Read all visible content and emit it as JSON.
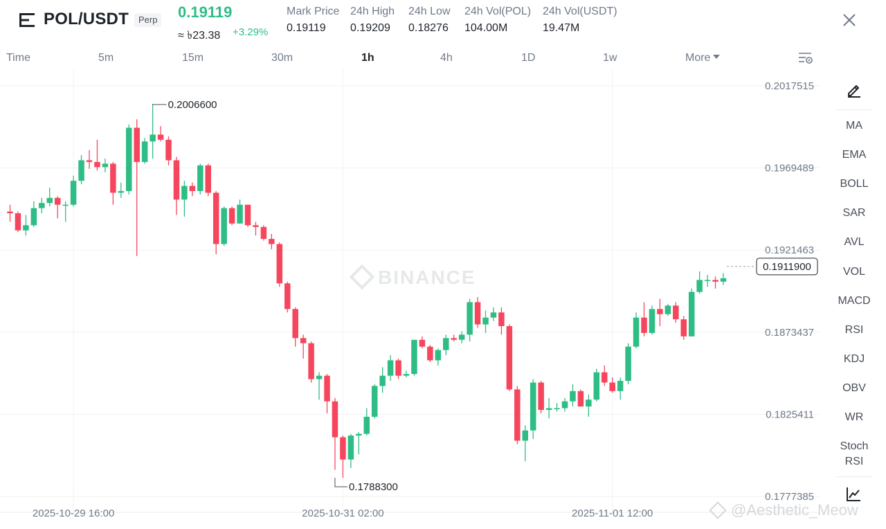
{
  "header": {
    "pair": "POL/USDT",
    "badge": "Perp",
    "last_price": "0.19119",
    "approx_fiat": "≈ ৳23.38",
    "change_pct": "+3.29%",
    "stats": [
      {
        "label": "Mark Price",
        "value": "0.19119"
      },
      {
        "label": "24h High",
        "value": "0.19209"
      },
      {
        "label": "24h Low",
        "value": "0.18276"
      },
      {
        "label": "24h Vol(POL)",
        "value": "104.00M"
      },
      {
        "label": "24h Vol(USDT)",
        "value": "19.47M"
      }
    ]
  },
  "intervals": {
    "items": [
      "Time",
      "5m",
      "15m",
      "30m",
      "1h",
      "4h",
      "1D",
      "1w",
      "More"
    ],
    "active": "1h"
  },
  "indicators": [
    "MA",
    "EMA",
    "BOLL",
    "SAR",
    "AVL",
    "VOL",
    "MACD",
    "RSI",
    "KDJ",
    "OBV",
    "WR",
    "Stoch",
    "RSI"
  ],
  "icons": {
    "menu": "menu-icon",
    "close": "close-icon",
    "settings": "chart-settings-icon",
    "pencil": "drawing-pencil-icon",
    "chart": "chart-line-icon"
  },
  "colors": {
    "up": "#2ebd85",
    "down": "#f6465d",
    "grid": "#f0f1f2",
    "text_secondary": "#707a8a"
  },
  "footer_watermark": "@Aesthetic_Meow",
  "chart_data": {
    "type": "candlestick",
    "watermark": "BINANCE",
    "y_ticks": [
      "0.2017515",
      "0.1969489",
      "0.1921463",
      "0.1873437",
      "0.1825411",
      "0.1777385"
    ],
    "y_tick_values": [
      0.2017515,
      0.1969489,
      0.1921463,
      0.1873437,
      0.1825411,
      0.1777385
    ],
    "x_ticks": [
      "2025-10-29 16:00",
      "2025-10-31 02:00",
      "2025-11-01 12:00"
    ],
    "x_tick_index": [
      8,
      42,
      76
    ],
    "current_price": "0.1911900",
    "current_price_value": 0.19119,
    "high_marker": {
      "label": "0.2006600",
      "value": 0.20066,
      "index": 18
    },
    "low_marker": {
      "label": "0.1788300",
      "value": 0.17883,
      "index": 41
    },
    "candles": [
      {
        "o": 0.1944,
        "h": 0.1948,
        "l": 0.1938,
        "c": 0.1943
      },
      {
        "o": 0.1943,
        "h": 0.1944,
        "l": 0.1932,
        "c": 0.1933
      },
      {
        "o": 0.1933,
        "h": 0.1942,
        "l": 0.193,
        "c": 0.1936
      },
      {
        "o": 0.1936,
        "h": 0.195,
        "l": 0.1935,
        "c": 0.1946
      },
      {
        "o": 0.1946,
        "h": 0.1952,
        "l": 0.1943,
        "c": 0.1949
      },
      {
        "o": 0.1949,
        "h": 0.1958,
        "l": 0.1947,
        "c": 0.1952
      },
      {
        "o": 0.1952,
        "h": 0.1953,
        "l": 0.194,
        "c": 0.1948
      },
      {
        "o": 0.1948,
        "h": 0.195,
        "l": 0.1938,
        "c": 0.1948
      },
      {
        "o": 0.1948,
        "h": 0.1965,
        "l": 0.1947,
        "c": 0.1962
      },
      {
        "o": 0.1962,
        "h": 0.1977,
        "l": 0.196,
        "c": 0.1974
      },
      {
        "o": 0.1974,
        "h": 0.198,
        "l": 0.1969,
        "c": 0.1973
      },
      {
        "o": 0.1973,
        "h": 0.1986,
        "l": 0.1968,
        "c": 0.197
      },
      {
        "o": 0.197,
        "h": 0.1975,
        "l": 0.1967,
        "c": 0.1972
      },
      {
        "o": 0.1972,
        "h": 0.1973,
        "l": 0.1948,
        "c": 0.1955
      },
      {
        "o": 0.1955,
        "h": 0.1961,
        "l": 0.1952,
        "c": 0.1956
      },
      {
        "o": 0.1956,
        "h": 0.1995,
        "l": 0.1954,
        "c": 0.1993
      },
      {
        "o": 0.1993,
        "h": 0.1998,
        "l": 0.1918,
        "c": 0.1973
      },
      {
        "o": 0.1973,
        "h": 0.1987,
        "l": 0.1972,
        "c": 0.1985
      },
      {
        "o": 0.1985,
        "h": 0.20066,
        "l": 0.1975,
        "c": 0.1989
      },
      {
        "o": 0.1989,
        "h": 0.1994,
        "l": 0.1985,
        "c": 0.1986
      },
      {
        "o": 0.1986,
        "h": 0.1988,
        "l": 0.1971,
        "c": 0.1974
      },
      {
        "o": 0.1974,
        "h": 0.1976,
        "l": 0.1942,
        "c": 0.1951
      },
      {
        "o": 0.1951,
        "h": 0.1962,
        "l": 0.1941,
        "c": 0.1959
      },
      {
        "o": 0.1959,
        "h": 0.1961,
        "l": 0.1953,
        "c": 0.1956
      },
      {
        "o": 0.1956,
        "h": 0.1972,
        "l": 0.1954,
        "c": 0.1971
      },
      {
        "o": 0.1971,
        "h": 0.1972,
        "l": 0.1953,
        "c": 0.1955
      },
      {
        "o": 0.1955,
        "h": 0.1956,
        "l": 0.1919,
        "c": 0.1925
      },
      {
        "o": 0.1925,
        "h": 0.1947,
        "l": 0.1924,
        "c": 0.1946
      },
      {
        "o": 0.1946,
        "h": 0.1947,
        "l": 0.1936,
        "c": 0.1937
      },
      {
        "o": 0.1937,
        "h": 0.1951,
        "l": 0.1937,
        "c": 0.1948
      },
      {
        "o": 0.1948,
        "h": 0.1948,
        "l": 0.1935,
        "c": 0.1936
      },
      {
        "o": 0.1936,
        "h": 0.1938,
        "l": 0.193,
        "c": 0.1935
      },
      {
        "o": 0.1935,
        "h": 0.1936,
        "l": 0.1927,
        "c": 0.1928
      },
      {
        "o": 0.1928,
        "h": 0.1931,
        "l": 0.1922,
        "c": 0.1925
      },
      {
        "o": 0.1925,
        "h": 0.1926,
        "l": 0.19,
        "c": 0.1902
      },
      {
        "o": 0.1902,
        "h": 0.1903,
        "l": 0.1885,
        "c": 0.1887
      },
      {
        "o": 0.1887,
        "h": 0.1888,
        "l": 0.1865,
        "c": 0.187
      },
      {
        "o": 0.187,
        "h": 0.1872,
        "l": 0.1858,
        "c": 0.1867
      },
      {
        "o": 0.1867,
        "h": 0.1868,
        "l": 0.1844,
        "c": 0.1846
      },
      {
        "o": 0.1846,
        "h": 0.185,
        "l": 0.1834,
        "c": 0.1848
      },
      {
        "o": 0.1848,
        "h": 0.1849,
        "l": 0.1826,
        "c": 0.1833
      },
      {
        "o": 0.1833,
        "h": 0.1835,
        "l": 0.1793,
        "c": 0.1812
      },
      {
        "o": 0.1812,
        "h": 0.1813,
        "l": 0.17883,
        "c": 0.1799
      },
      {
        "o": 0.1799,
        "h": 0.1814,
        "l": 0.1794,
        "c": 0.1813
      },
      {
        "o": 0.1813,
        "h": 0.1815,
        "l": 0.1802,
        "c": 0.1814
      },
      {
        "o": 0.1814,
        "h": 0.1829,
        "l": 0.1813,
        "c": 0.1824
      },
      {
        "o": 0.1824,
        "h": 0.1843,
        "l": 0.1823,
        "c": 0.1842
      },
      {
        "o": 0.1842,
        "h": 0.1853,
        "l": 0.1838,
        "c": 0.1848
      },
      {
        "o": 0.1848,
        "h": 0.186,
        "l": 0.1845,
        "c": 0.1857
      },
      {
        "o": 0.1857,
        "h": 0.1858,
        "l": 0.1846,
        "c": 0.1848
      },
      {
        "o": 0.1848,
        "h": 0.1851,
        "l": 0.1847,
        "c": 0.1849
      },
      {
        "o": 0.1849,
        "h": 0.1869,
        "l": 0.1848,
        "c": 0.1869
      },
      {
        "o": 0.1869,
        "h": 0.1871,
        "l": 0.1864,
        "c": 0.1865
      },
      {
        "o": 0.1865,
        "h": 0.1866,
        "l": 0.1856,
        "c": 0.1857
      },
      {
        "o": 0.1857,
        "h": 0.1864,
        "l": 0.1854,
        "c": 0.1863
      },
      {
        "o": 0.1863,
        "h": 0.1872,
        "l": 0.186,
        "c": 0.187
      },
      {
        "o": 0.187,
        "h": 0.1872,
        "l": 0.1868,
        "c": 0.1869
      },
      {
        "o": 0.1869,
        "h": 0.1874,
        "l": 0.1867,
        "c": 0.1872
      },
      {
        "o": 0.1872,
        "h": 0.1893,
        "l": 0.1868,
        "c": 0.1891
      },
      {
        "o": 0.1891,
        "h": 0.1894,
        "l": 0.1876,
        "c": 0.1878
      },
      {
        "o": 0.1878,
        "h": 0.1886,
        "l": 0.1873,
        "c": 0.1882
      },
      {
        "o": 0.1882,
        "h": 0.1888,
        "l": 0.188,
        "c": 0.1885
      },
      {
        "o": 0.1885,
        "h": 0.1888,
        "l": 0.1872,
        "c": 0.1877
      },
      {
        "o": 0.1877,
        "h": 0.1878,
        "l": 0.1839,
        "c": 0.184
      },
      {
        "o": 0.184,
        "h": 0.1842,
        "l": 0.1808,
        "c": 0.181
      },
      {
        "o": 0.181,
        "h": 0.1819,
        "l": 0.1798,
        "c": 0.1816
      },
      {
        "o": 0.1816,
        "h": 0.1846,
        "l": 0.1811,
        "c": 0.1844
      },
      {
        "o": 0.1844,
        "h": 0.1845,
        "l": 0.1826,
        "c": 0.1828
      },
      {
        "o": 0.1828,
        "h": 0.1835,
        "l": 0.1823,
        "c": 0.1829
      },
      {
        "o": 0.1829,
        "h": 0.1832,
        "l": 0.1827,
        "c": 0.1829
      },
      {
        "o": 0.1829,
        "h": 0.1835,
        "l": 0.1827,
        "c": 0.1833
      },
      {
        "o": 0.1833,
        "h": 0.1843,
        "l": 0.183,
        "c": 0.1839
      },
      {
        "o": 0.1839,
        "h": 0.184,
        "l": 0.183,
        "c": 0.183
      },
      {
        "o": 0.183,
        "h": 0.1837,
        "l": 0.1824,
        "c": 0.1834
      },
      {
        "o": 0.1834,
        "h": 0.1852,
        "l": 0.1833,
        "c": 0.185
      },
      {
        "o": 0.185,
        "h": 0.1854,
        "l": 0.1842,
        "c": 0.1844
      },
      {
        "o": 0.1844,
        "h": 0.1847,
        "l": 0.1838,
        "c": 0.1839
      },
      {
        "o": 0.1839,
        "h": 0.1847,
        "l": 0.1834,
        "c": 0.1845
      },
      {
        "o": 0.1845,
        "h": 0.1867,
        "l": 0.1843,
        "c": 0.1865
      },
      {
        "o": 0.1865,
        "h": 0.1885,
        "l": 0.1864,
        "c": 0.1882
      },
      {
        "o": 0.1882,
        "h": 0.1891,
        "l": 0.1871,
        "c": 0.1873
      },
      {
        "o": 0.1873,
        "h": 0.1889,
        "l": 0.1872,
        "c": 0.1887
      },
      {
        "o": 0.1887,
        "h": 0.1893,
        "l": 0.1877,
        "c": 0.1884
      },
      {
        "o": 0.1884,
        "h": 0.189,
        "l": 0.1883,
        "c": 0.1889
      },
      {
        "o": 0.1889,
        "h": 0.1891,
        "l": 0.1879,
        "c": 0.1881
      },
      {
        "o": 0.1881,
        "h": 0.1883,
        "l": 0.1869,
        "c": 0.1871
      },
      {
        "o": 0.1871,
        "h": 0.1899,
        "l": 0.1871,
        "c": 0.1897
      },
      {
        "o": 0.1897,
        "h": 0.1909,
        "l": 0.1896,
        "c": 0.1904
      },
      {
        "o": 0.1904,
        "h": 0.1907,
        "l": 0.19,
        "c": 0.1904
      },
      {
        "o": 0.1904,
        "h": 0.1906,
        "l": 0.1899,
        "c": 0.1903
      },
      {
        "o": 0.1903,
        "h": 0.1908,
        "l": 0.1901,
        "c": 0.1905
      }
    ]
  }
}
